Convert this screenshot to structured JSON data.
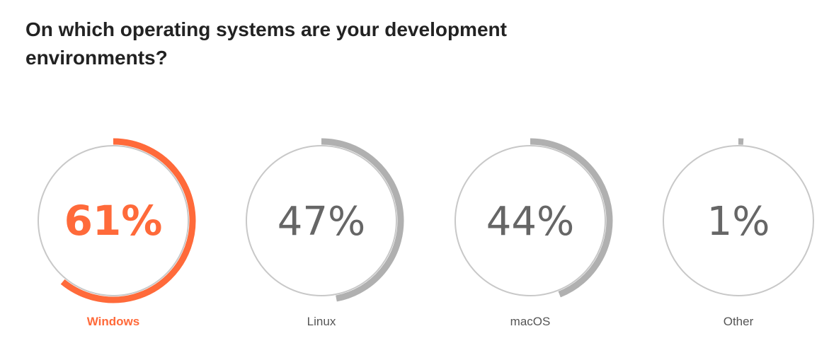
{
  "chart_data": {
    "type": "radial-progress",
    "title": "On which operating systems are your development environments?",
    "items": [
      {
        "label": "Windows",
        "value": 61,
        "display": "61%",
        "highlight": true
      },
      {
        "label": "Linux",
        "value": 47,
        "display": "47%",
        "highlight": false
      },
      {
        "label": "macOS",
        "value": 44,
        "display": "44%",
        "highlight": false
      },
      {
        "label": "Other",
        "value": 1,
        "display": "1%",
        "highlight": false
      }
    ],
    "colors": {
      "highlight": "#ff6a3a",
      "arc": "#b0b0b0",
      "ring": "#c8c8c8",
      "text": "#666666",
      "label": "#555555"
    }
  }
}
